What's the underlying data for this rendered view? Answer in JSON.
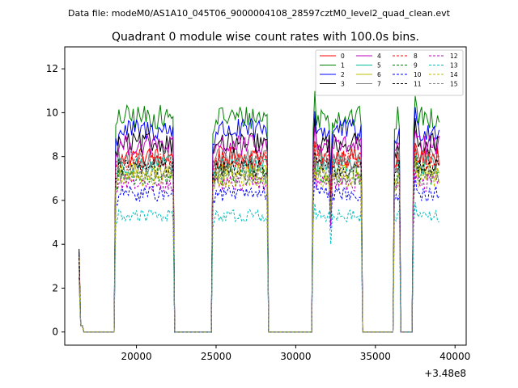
{
  "figure": {
    "suptitle": "Data file: modeM0/AS1A10_045T06_9000004108_28597cztM0_level2_quad_clean.evt"
  },
  "chart_data": {
    "type": "line",
    "title": "Quadrant 0 module wise count rates with 100.0s bins.",
    "xlabel": "",
    "ylabel": "",
    "x_offset_label": "+3.48e8",
    "xlim": [
      15500,
      40700
    ],
    "ylim": [
      -0.6,
      13.0
    ],
    "xticks": [
      20000,
      25000,
      30000,
      35000,
      40000
    ],
    "yticks": [
      0,
      2,
      4,
      6,
      8,
      10,
      12
    ],
    "legend": {
      "placement": "top-right",
      "columns": 4
    },
    "segments": [
      {
        "t_start": 16400,
        "t_end": 16600,
        "rates_at": "burst"
      },
      {
        "t_start": 18700,
        "t_end": 22300
      },
      {
        "t_start": 24800,
        "t_end": 28200
      },
      {
        "t_start": 31100,
        "t_end": 34100
      },
      {
        "t_start": 36200,
        "t_end": 36500
      },
      {
        "t_start": 37400,
        "t_end": 39000
      }
    ],
    "series": [
      {
        "name": "0",
        "color": "#ff0000",
        "dash": "solid",
        "mean_rate": 8.0
      },
      {
        "name": "1",
        "color": "#008000",
        "dash": "solid",
        "mean_rate": 9.8
      },
      {
        "name": "2",
        "color": "#0000ff",
        "dash": "solid",
        "mean_rate": 9.2
      },
      {
        "name": "3",
        "color": "#000000",
        "dash": "solid",
        "mean_rate": 8.6
      },
      {
        "name": "4",
        "color": "#bf00bf",
        "dash": "solid",
        "mean_rate": 8.5
      },
      {
        "name": "5",
        "color": "#00bfa0",
        "dash": "solid",
        "mean_rate": 7.6
      },
      {
        "name": "6",
        "color": "#bfbf00",
        "dash": "solid",
        "mean_rate": 7.3
      },
      {
        "name": "7",
        "color": "#808080",
        "dash": "solid",
        "mean_rate": 7.9
      },
      {
        "name": "8",
        "color": "#ff0000",
        "dash": "dashed",
        "mean_rate": 7.8
      },
      {
        "name": "9",
        "color": "#008000",
        "dash": "dashed",
        "mean_rate": 7.1
      },
      {
        "name": "10",
        "color": "#0000ff",
        "dash": "dashed",
        "mean_rate": 6.3
      },
      {
        "name": "11",
        "color": "#000000",
        "dash": "dashed",
        "mean_rate": 7.5
      },
      {
        "name": "12",
        "color": "#bf00bf",
        "dash": "dashed",
        "mean_rate": 6.8
      },
      {
        "name": "13",
        "color": "#00bfbf",
        "dash": "dashed",
        "mean_rate": 5.3
      },
      {
        "name": "14",
        "color": "#bfbf00",
        "dash": "dashed",
        "mean_rate": 7.0
      },
      {
        "name": "15",
        "color": "#808080",
        "dash": "dashed",
        "mean_rate": 7.2
      }
    ]
  }
}
